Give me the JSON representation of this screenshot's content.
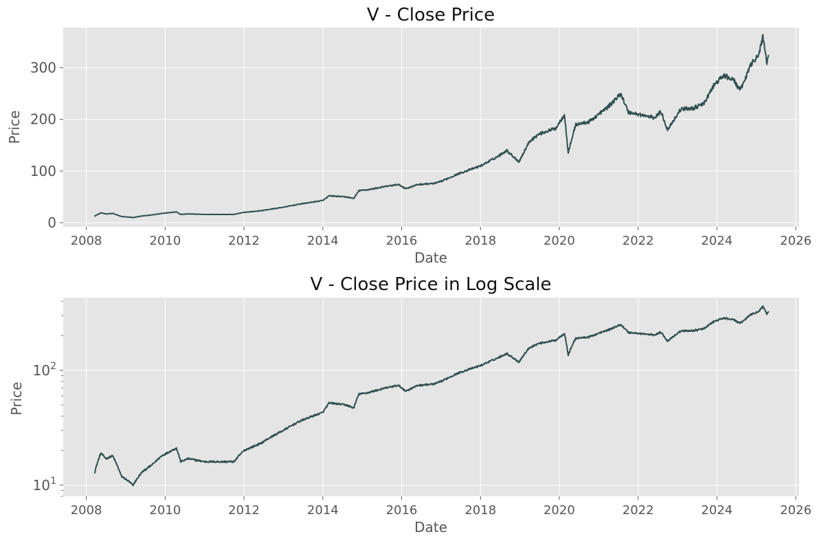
{
  "colors": {
    "plot_background": "#e5e5e5",
    "grid": "#ffffff",
    "line": "#2f4f4f",
    "tick_text": "#555555"
  },
  "chart_data": [
    {
      "type": "line",
      "title": "V - Close Price",
      "xlabel": "Date",
      "ylabel": "Price",
      "yscale": "linear",
      "grid": true,
      "xlim": [
        "2007-06-01",
        "2026-02-01"
      ],
      "ylim": [
        -8,
        378
      ],
      "x_ticks": [
        {
          "value": "2008-01-01",
          "label": "2008"
        },
        {
          "value": "2010-01-01",
          "label": "2010"
        },
        {
          "value": "2012-01-01",
          "label": "2012"
        },
        {
          "value": "2014-01-01",
          "label": "2014"
        },
        {
          "value": "2016-01-01",
          "label": "2016"
        },
        {
          "value": "2018-01-01",
          "label": "2018"
        },
        {
          "value": "2020-01-01",
          "label": "2020"
        },
        {
          "value": "2022-01-01",
          "label": "2022"
        },
        {
          "value": "2024-01-01",
          "label": "2024"
        },
        {
          "value": "2026-01-01",
          "label": "2026"
        }
      ],
      "y_ticks": [
        {
          "value": 0,
          "label": "0"
        },
        {
          "value": 100,
          "label": "100"
        },
        {
          "value": 200,
          "label": "200"
        },
        {
          "value": 300,
          "label": "300"
        }
      ],
      "series": [
        {
          "color": "#2f4f4f",
          "x": [
            "2008-03-19",
            "2008-05-15",
            "2008-07-01",
            "2008-09-01",
            "2008-11-20",
            "2009-01-15",
            "2009-03-09",
            "2009-06-01",
            "2009-09-01",
            "2009-12-01",
            "2010-04-15",
            "2010-05-25",
            "2010-08-01",
            "2011-01-01",
            "2011-06-01",
            "2011-10-01",
            "2012-01-01",
            "2012-06-01",
            "2013-01-01",
            "2013-06-01",
            "2014-01-01",
            "2014-03-01",
            "2014-08-01",
            "2014-10-15",
            "2014-12-01",
            "2015-03-01",
            "2015-08-01",
            "2015-12-01",
            "2016-02-10",
            "2016-06-01",
            "2016-11-01",
            "2017-01-01",
            "2017-06-01",
            "2018-01-01",
            "2018-06-01",
            "2018-09-01",
            "2018-12-24",
            "2019-04-01",
            "2019-07-01",
            "2019-12-01",
            "2020-02-19",
            "2020-03-23",
            "2020-06-01",
            "2020-10-01",
            "2021-01-01",
            "2021-04-01",
            "2021-07-26",
            "2021-10-01",
            "2022-01-01",
            "2022-06-01",
            "2022-08-01",
            "2022-09-30",
            "2023-02-01",
            "2023-06-01",
            "2023-09-01",
            "2023-12-01",
            "2024-03-01",
            "2024-06-01",
            "2024-08-05",
            "2024-10-01",
            "2024-12-01",
            "2025-01-15",
            "2025-03-03",
            "2025-04-08",
            "2025-04-25"
          ],
          "values": [
            13,
            19,
            17,
            18,
            12,
            11,
            10,
            13,
            15,
            18,
            21,
            16,
            17,
            16,
            16,
            16,
            20,
            23,
            30,
            36,
            43,
            52,
            50,
            47,
            62,
            64,
            70,
            74,
            66,
            74,
            76,
            80,
            94,
            110,
            127,
            140,
            118,
            158,
            172,
            183,
            210,
            135,
            190,
            195,
            210,
            225,
            250,
            214,
            210,
            203,
            215,
            180,
            220,
            222,
            230,
            265,
            285,
            277,
            256,
            285,
            315,
            320,
            360,
            310,
            330
          ]
        }
      ]
    },
    {
      "type": "line",
      "title": "V - Close Price in Log Scale",
      "xlabel": "Date",
      "ylabel": "Price",
      "yscale": "log",
      "grid": true,
      "xlim": [
        "2007-06-01",
        "2026-02-01"
      ],
      "ylim": [
        8,
        430
      ],
      "x_ticks": [
        {
          "value": "2008-01-01",
          "label": "2008"
        },
        {
          "value": "2010-01-01",
          "label": "2010"
        },
        {
          "value": "2012-01-01",
          "label": "2012"
        },
        {
          "value": "2014-01-01",
          "label": "2014"
        },
        {
          "value": "2016-01-01",
          "label": "2016"
        },
        {
          "value": "2018-01-01",
          "label": "2018"
        },
        {
          "value": "2020-01-01",
          "label": "2020"
        },
        {
          "value": "2022-01-01",
          "label": "2022"
        },
        {
          "value": "2024-01-01",
          "label": "2024"
        },
        {
          "value": "2026-01-01",
          "label": "2026"
        }
      ],
      "y_ticks": [
        {
          "value": 10,
          "base": "10",
          "exp": "1"
        },
        {
          "value": 100,
          "base": "10",
          "exp": "2"
        }
      ],
      "series": [
        {
          "color": "#2f4f4f",
          "x": [
            "2008-03-19",
            "2008-05-15",
            "2008-07-01",
            "2008-09-01",
            "2008-11-20",
            "2009-01-15",
            "2009-03-09",
            "2009-06-01",
            "2009-09-01",
            "2009-12-01",
            "2010-04-15",
            "2010-05-25",
            "2010-08-01",
            "2011-01-01",
            "2011-06-01",
            "2011-10-01",
            "2012-01-01",
            "2012-06-01",
            "2013-01-01",
            "2013-06-01",
            "2014-01-01",
            "2014-03-01",
            "2014-08-01",
            "2014-10-15",
            "2014-12-01",
            "2015-03-01",
            "2015-08-01",
            "2015-12-01",
            "2016-02-10",
            "2016-06-01",
            "2016-11-01",
            "2017-01-01",
            "2017-06-01",
            "2018-01-01",
            "2018-06-01",
            "2018-09-01",
            "2018-12-24",
            "2019-04-01",
            "2019-07-01",
            "2019-12-01",
            "2020-02-19",
            "2020-03-23",
            "2020-06-01",
            "2020-10-01",
            "2021-01-01",
            "2021-04-01",
            "2021-07-26",
            "2021-10-01",
            "2022-01-01",
            "2022-06-01",
            "2022-08-01",
            "2022-09-30",
            "2023-02-01",
            "2023-06-01",
            "2023-09-01",
            "2023-12-01",
            "2024-03-01",
            "2024-06-01",
            "2024-08-05",
            "2024-10-01",
            "2024-12-01",
            "2025-01-15",
            "2025-03-03",
            "2025-04-08",
            "2025-04-25"
          ],
          "values": [
            13,
            19,
            17,
            18,
            12,
            11,
            10,
            13,
            15,
            18,
            21,
            16,
            17,
            16,
            16,
            16,
            20,
            23,
            30,
            36,
            43,
            52,
            50,
            47,
            62,
            64,
            70,
            74,
            66,
            74,
            76,
            80,
            94,
            110,
            127,
            140,
            118,
            158,
            172,
            183,
            210,
            135,
            190,
            195,
            210,
            225,
            250,
            214,
            210,
            203,
            215,
            180,
            220,
            222,
            230,
            265,
            285,
            277,
            256,
            285,
            315,
            320,
            360,
            310,
            330
          ]
        }
      ]
    }
  ]
}
